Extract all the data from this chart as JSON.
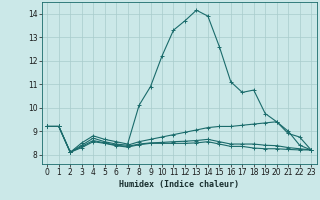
{
  "xlabel": "Humidex (Indice chaleur)",
  "background_color": "#cbe8e8",
  "grid_color": "#a8cccc",
  "line_color": "#1a6b6b",
  "xlim": [
    -0.5,
    23.5
  ],
  "ylim": [
    7.6,
    14.5
  ],
  "xticks": [
    0,
    1,
    2,
    3,
    4,
    5,
    6,
    7,
    8,
    9,
    10,
    11,
    12,
    13,
    14,
    15,
    16,
    17,
    18,
    19,
    20,
    21,
    22,
    23
  ],
  "yticks": [
    8,
    9,
    10,
    11,
    12,
    13,
    14
  ],
  "series": [
    {
      "x": [
        0,
        1,
        2,
        3,
        4,
        5,
        6,
        7,
        8,
        9,
        10,
        11,
        12,
        13,
        14,
        15,
        16,
        17,
        18,
        19,
        20,
        21,
        22,
        23
      ],
      "y": [
        9.2,
        9.2,
        8.1,
        8.5,
        8.8,
        8.65,
        8.55,
        8.45,
        10.1,
        10.9,
        12.2,
        13.3,
        13.7,
        14.15,
        13.9,
        12.6,
        11.1,
        10.65,
        10.75,
        9.75,
        9.4,
        8.9,
        8.75,
        8.2
      ]
    },
    {
      "x": [
        0,
        1,
        2,
        3,
        4,
        5,
        6,
        7,
        8,
        9,
        10,
        11,
        12,
        13,
        14,
        15,
        16,
        17,
        18,
        19,
        20,
        21,
        22,
        23
      ],
      "y": [
        9.2,
        9.2,
        8.1,
        8.4,
        8.7,
        8.55,
        8.45,
        8.4,
        8.55,
        8.65,
        8.75,
        8.85,
        8.95,
        9.05,
        9.15,
        9.2,
        9.2,
        9.25,
        9.3,
        9.35,
        9.4,
        9.0,
        8.4,
        8.2
      ]
    },
    {
      "x": [
        0,
        1,
        2,
        3,
        4,
        5,
        6,
        7,
        8,
        9,
        10,
        11,
        12,
        13,
        14,
        15,
        16,
        17,
        18,
        19,
        20,
        21,
        22,
        23
      ],
      "y": [
        9.2,
        9.2,
        8.1,
        8.35,
        8.6,
        8.5,
        8.4,
        8.35,
        8.45,
        8.5,
        8.52,
        8.55,
        8.57,
        8.6,
        8.65,
        8.55,
        8.45,
        8.45,
        8.45,
        8.4,
        8.38,
        8.3,
        8.25,
        8.2
      ]
    },
    {
      "x": [
        0,
        1,
        2,
        3,
        4,
        5,
        6,
        7,
        8,
        9,
        10,
        11,
        12,
        13,
        14,
        15,
        16,
        17,
        18,
        19,
        20,
        21,
        22,
        23
      ],
      "y": [
        9.2,
        9.2,
        8.1,
        8.3,
        8.55,
        8.48,
        8.38,
        8.32,
        8.42,
        8.48,
        8.48,
        8.48,
        8.48,
        8.5,
        8.55,
        8.45,
        8.35,
        8.35,
        8.28,
        8.25,
        8.25,
        8.22,
        8.2,
        8.2
      ]
    }
  ]
}
